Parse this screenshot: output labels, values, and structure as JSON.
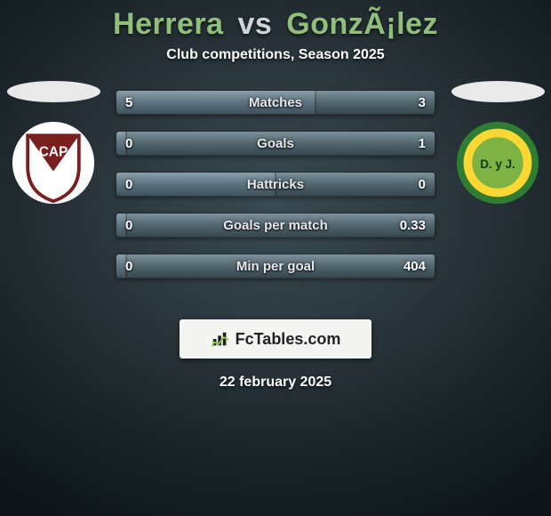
{
  "header": {
    "title_left": "Herrera",
    "title_vs": "vs",
    "title_right": "GonzÃ¡lez",
    "title_color_players": "#8fbf7a",
    "title_color_vs": "#cfd4d6",
    "subtitle": "Club competitions, Season 2025"
  },
  "teams": {
    "left": {
      "name": "CAP",
      "badge_colors": {
        "shield_fill": "#ffffff",
        "shield_border": "#7a1f1f",
        "stripe": "#7a1f1f",
        "text": "#7a1f1f"
      }
    },
    "right": {
      "name": "D. y J.",
      "badge_colors": {
        "outer": "#2e7d32",
        "mid": "#fdd835",
        "inner": "#2e7d32",
        "text": "#0d3b12"
      }
    }
  },
  "stats": {
    "type": "h2h-bar-table",
    "bar_bg": "#506069",
    "fill_left": "#5c7480",
    "fill_right": "#51676f",
    "label_color": "#e8e8e8",
    "value_color": "#ffffff",
    "font_size_label": 15,
    "font_size_value": 15,
    "rows": [
      {
        "label": "Matches",
        "left": "5",
        "right": "3",
        "left_pct": 62.5,
        "right_pct": 37.5
      },
      {
        "label": "Goals",
        "left": "0",
        "right": "1",
        "left_pct": 3,
        "right_pct": 97
      },
      {
        "label": "Hattricks",
        "left": "0",
        "right": "0",
        "left_pct": 50,
        "right_pct": 50
      },
      {
        "label": "Goals per match",
        "left": "0",
        "right": "0.33",
        "left_pct": 3,
        "right_pct": 97
      },
      {
        "label": "Min per goal",
        "left": "0",
        "right": "404",
        "left_pct": 3,
        "right_pct": 97
      }
    ]
  },
  "brand": {
    "text": "FcTables.com",
    "box_bg": "#f4f4f2",
    "text_color": "#222222"
  },
  "footer": {
    "date": "22 february 2025"
  }
}
